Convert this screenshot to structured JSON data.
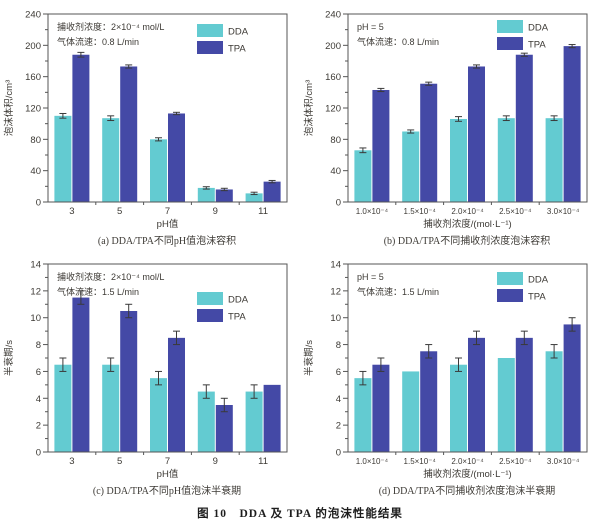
{
  "figure": {
    "caption": "图 10　DDA 及 TPA 的泡沫性能结果"
  },
  "colors": {
    "dda": "#63cbd1",
    "tpa": "#4449a6",
    "axis": "#555555",
    "text": "#3d3a35",
    "error": "#3a3a3a",
    "background": "#ffffff"
  },
  "legend": {
    "items": [
      "DDA",
      "TPA"
    ],
    "position": "top-right-inside"
  },
  "chart_data": [
    {
      "id": "a",
      "type": "bar",
      "title": "(a) DDA/TPA不同pH值泡沫容积",
      "annotation": [
        "捕收剂浓度：2×10⁻⁴ mol/L",
        "气体流速：0.8 L/min"
      ],
      "xlabel": "pH值",
      "ylabel": "泡沫体积/cm³",
      "ylim": [
        0,
        240
      ],
      "ytick_step": 40,
      "grid": false,
      "categories": [
        "3",
        "5",
        "7",
        "9",
        "11"
      ],
      "series": [
        {
          "name": "DDA",
          "values": [
            110,
            107,
            80,
            18,
            11
          ],
          "errors": [
            3,
            3,
            2,
            1.5,
            1.5
          ]
        },
        {
          "name": "TPA",
          "values": [
            188,
            173,
            113,
            16,
            26
          ],
          "errors": [
            3,
            2,
            1.5,
            1.5,
            1.5
          ]
        }
      ]
    },
    {
      "id": "b",
      "type": "bar",
      "title": "(b) DDA/TPA不同捕收剂浓度泡沫容积",
      "annotation": [
        "pH = 5",
        "气体流速：0.8 L/min"
      ],
      "xlabel": "捕收剂浓度/(mol·L⁻¹)",
      "ylabel": "泡沫体积/cm³",
      "ylim": [
        0,
        240
      ],
      "ytick_step": 40,
      "grid": false,
      "categories": [
        "1.0×10⁻⁴",
        "1.5×10⁻⁴",
        "2.0×10⁻⁴",
        "2.5×10⁻⁴",
        "3.0×10⁻⁴"
      ],
      "series": [
        {
          "name": "DDA",
          "values": [
            66,
            90,
            106,
            107,
            107
          ],
          "errors": [
            3,
            2,
            3,
            3,
            3
          ]
        },
        {
          "name": "TPA",
          "values": [
            143,
            151,
            173,
            188,
            199
          ],
          "errors": [
            2,
            2,
            2,
            2,
            2
          ]
        }
      ]
    },
    {
      "id": "c",
      "type": "bar",
      "title": "(c) DDA/TPA不同pH值泡沫半衰期",
      "annotation": [
        "捕收剂浓度：2×10⁻⁴ mol/L",
        "气体流速：1.5 L/min"
      ],
      "xlabel": "pH值",
      "ylabel": "半衰期/s",
      "ylim": [
        0,
        14
      ],
      "ytick_step": 2,
      "grid": false,
      "categories": [
        "3",
        "5",
        "7",
        "9",
        "11"
      ],
      "series": [
        {
          "name": "DDA",
          "values": [
            6.5,
            6.5,
            5.5,
            4.5,
            4.5
          ],
          "errors": [
            0.5,
            0.5,
            0.5,
            0.5,
            0.5
          ]
        },
        {
          "name": "TPA",
          "values": [
            11.5,
            10.5,
            8.5,
            3.5,
            5.0
          ],
          "errors": [
            0.5,
            0.5,
            0.5,
            0.5,
            0
          ]
        }
      ]
    },
    {
      "id": "d",
      "type": "bar",
      "title": "(d) DDA/TPA不同捕收剂浓度泡沫半衰期",
      "annotation": [
        "pH = 5",
        "气体流速：1.5 L/min"
      ],
      "xlabel": "捕收剂浓度/(mol·L⁻¹)",
      "ylabel": "半衰期/s",
      "ylim": [
        0,
        14
      ],
      "ytick_step": 2,
      "grid": false,
      "categories": [
        "1.0×10⁻⁴",
        "1.5×10⁻⁴",
        "2.0×10⁻⁴",
        "2.5×10⁻⁴",
        "3.0×10⁻⁴"
      ],
      "series": [
        {
          "name": "DDA",
          "values": [
            5.5,
            6.0,
            6.5,
            7.0,
            7.5
          ],
          "errors": [
            0.5,
            0,
            0.5,
            0,
            0.5
          ]
        },
        {
          "name": "TPA",
          "values": [
            6.5,
            7.5,
            8.5,
            8.5,
            9.5
          ],
          "errors": [
            0.5,
            0.5,
            0.5,
            0.5,
            0.5
          ]
        }
      ]
    }
  ]
}
